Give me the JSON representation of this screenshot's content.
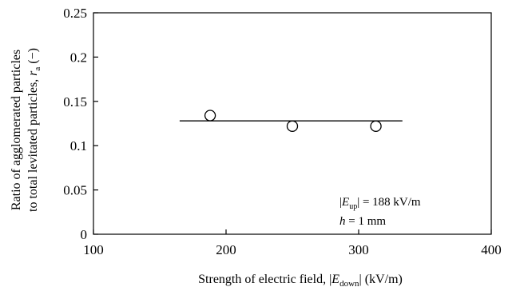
{
  "chart_data": {
    "type": "scatter",
    "title": "",
    "xlabel": {
      "prefix": "Strength of electric field, |",
      "var": "E",
      "sub": "down",
      "suffix": "| (kV/m)"
    },
    "ylabel": {
      "line1": "Ratio of agglomerated particles",
      "line2_prefix": "to total levitated particles, ",
      "line2_var": "r",
      "line2_sub": "a",
      "line2_suffix": " (−)"
    },
    "xlim": [
      100,
      400
    ],
    "ylim": [
      0,
      0.25
    ],
    "x_ticks": [
      "100",
      "200",
      "300",
      "400"
    ],
    "y_ticks": [
      "0",
      "0.05",
      "0.1",
      "0.15",
      "0.2",
      "0.25"
    ],
    "grid": false,
    "series": [
      {
        "marker": "open-circle",
        "x": [
          188,
          250,
          313
        ],
        "y": [
          0.134,
          0.122,
          0.122
        ]
      }
    ],
    "fit_line": {
      "x": [
        165,
        333
      ],
      "y": [
        0.128,
        0.128
      ]
    },
    "annotations": {
      "line1": {
        "prefix": "|",
        "var": "E",
        "sub": "up",
        "suffix": "| = 188 kV/m"
      },
      "line2": {
        "var": "h",
        "suffix": " = 1 mm"
      }
    }
  }
}
